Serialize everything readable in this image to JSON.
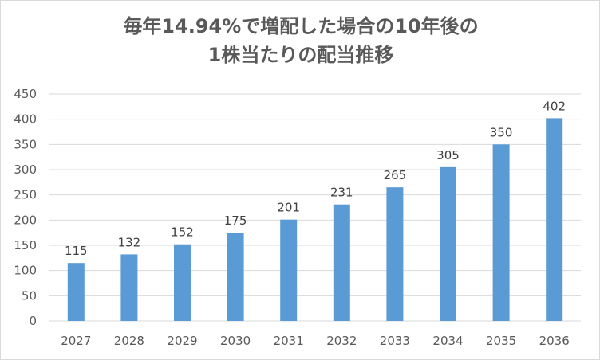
{
  "chart_data": {
    "type": "bar",
    "title_lines": [
      "毎年14.94%で増配した場合の10年後の",
      "1株当たりの配当推移"
    ],
    "categories": [
      "2027",
      "2028",
      "2029",
      "2030",
      "2031",
      "2032",
      "2033",
      "2034",
      "2035",
      "2036"
    ],
    "series": [
      {
        "values": [
          115,
          132,
          152,
          175,
          201,
          231,
          265,
          305,
          350,
          402
        ],
        "color": "#5b9bd5"
      }
    ],
    "data_labels": [
      "115",
      "132",
      "152",
      "175",
      "201",
      "231",
      "265",
      "305",
      "350",
      "402"
    ],
    "ylim": [
      0,
      450
    ],
    "yticks": [
      "0",
      "50",
      "100",
      "150",
      "200",
      "250",
      "300",
      "350",
      "400",
      "450"
    ],
    "xlabel": "",
    "ylabel": "",
    "grid": true,
    "legend": "none",
    "gridline_color": "#d9d9d9"
  }
}
